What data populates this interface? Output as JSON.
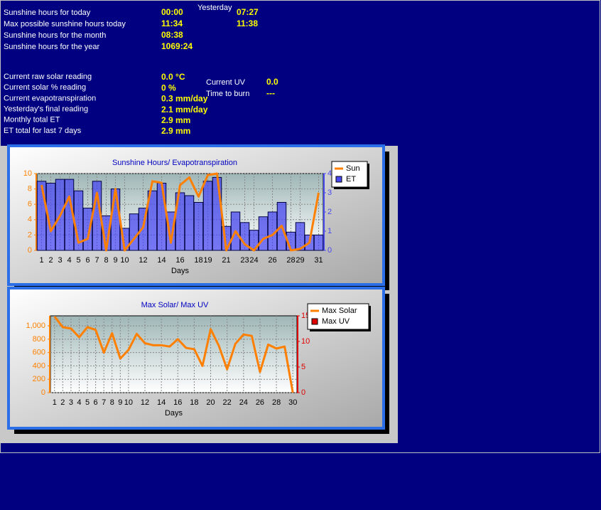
{
  "panel": {
    "yesterday_heading": "Yesterday",
    "sunshine": [
      {
        "label": "Sunshine hours for today",
        "today": "00:00",
        "yesterday": "07:27"
      },
      {
        "label": "Max possible sunshine hours today",
        "today": "11:34",
        "yesterday": "11:38"
      },
      {
        "label": "Sunshine hours for the month",
        "today": "08:38"
      },
      {
        "label": "Sunshine hours for the year",
        "today": "1069:24"
      }
    ],
    "readings": [
      {
        "label": "Current raw solar reading",
        "value": "0.0 °C"
      },
      {
        "label": "Current solar % reading",
        "value": "0 %"
      },
      {
        "label": "Current evapotranspiration",
        "value": "0.3 mm/day"
      },
      {
        "label": "Yesterday's final reading",
        "value": "2.1 mm/day"
      },
      {
        "label": "Monthly total ET",
        "value": "2.9 mm"
      },
      {
        "label": "ET total for last 7 days",
        "value": "2.9 mm"
      }
    ],
    "uv": [
      {
        "label": "Current UV",
        "value": "0.0"
      },
      {
        "label": "Time to burn",
        "value": "---"
      }
    ]
  },
  "chart_data": [
    {
      "type": "combo",
      "title": "Sunshine Hours/ Evapotranspiration",
      "x_label": "Days",
      "categories": [
        "1",
        "2",
        "3",
        "4",
        "5",
        "6",
        "7",
        "8",
        "9",
        "10",
        null,
        "12",
        null,
        "14",
        null,
        "16",
        null,
        "18",
        "19",
        null,
        "21",
        null,
        "23",
        "24",
        null,
        "26",
        null,
        "28",
        "29",
        null,
        "31"
      ],
      "series": [
        {
          "name": "Sun",
          "type": "line",
          "color": "#ff8000",
          "values": [
            8.5,
            2.5,
            4.5,
            7,
            1,
            1.5,
            7.5,
            0,
            8,
            0,
            1.5,
            3,
            9,
            8.8,
            1,
            8.5,
            9.5,
            7,
            9.8,
            10,
            0,
            2.5,
            0.8,
            0,
            1.5,
            2,
            3.2,
            0,
            0.2,
            1,
            7.5
          ]
        },
        {
          "name": "ET",
          "type": "bar",
          "axis": "y2",
          "color": "#4848f0",
          "values": [
            3.6,
            3.5,
            3.7,
            3.7,
            3.1,
            2.2,
            3.6,
            1.8,
            3.2,
            1.15,
            1.9,
            2.2,
            3.1,
            3.5,
            2.0,
            3.0,
            2.85,
            2.5,
            3.6,
            3.8,
            1.25,
            2.0,
            1.45,
            1.05,
            1.75,
            2.0,
            2.5,
            0.95,
            1.45,
            0.8,
            0.8
          ]
        }
      ],
      "ylim": [
        0,
        10
      ],
      "yticks": [
        0,
        2,
        4,
        6,
        8,
        10
      ],
      "y2lim": [
        0,
        4
      ],
      "y2ticks": [
        0,
        1,
        2,
        3,
        4
      ],
      "grid": true,
      "legend": "upper right"
    },
    {
      "type": "combo",
      "title": "Max Solar/ Max UV",
      "x_label": "Days",
      "categories": [
        "1",
        "2",
        "3",
        "4",
        "5",
        "6",
        "7",
        "8",
        "9",
        "10",
        null,
        "12",
        null,
        "14",
        null,
        "16",
        null,
        "18",
        null,
        "20",
        null,
        "22",
        null,
        "24",
        null,
        "26",
        null,
        "28",
        null,
        "30"
      ],
      "series": [
        {
          "name": "Max Solar",
          "type": "line",
          "color": "#ff8000",
          "values": [
            1140,
            980,
            960,
            830,
            980,
            940,
            600,
            890,
            510,
            640,
            880,
            740,
            710,
            710,
            690,
            800,
            670,
            650,
            400,
            950,
            700,
            350,
            730,
            870,
            850,
            310,
            720,
            660,
            690,
            0
          ]
        },
        {
          "name": "Max UV",
          "type": "bar",
          "axis": "y2",
          "color": "#e00000",
          "values": [
            0,
            0,
            0,
            0,
            0,
            0,
            0,
            0,
            0,
            0,
            0,
            0,
            0,
            0,
            0,
            0,
            0,
            0,
            0,
            0,
            0,
            0,
            0,
            0,
            0,
            0,
            0,
            0,
            0,
            0
          ]
        }
      ],
      "ylim": [
        0,
        1150
      ],
      "yticks": [
        0,
        200,
        400,
        600,
        800,
        {
          "value": 1000,
          "label": "1,000"
        }
      ],
      "y2lim": [
        0,
        15
      ],
      "y2ticks": [
        0,
        5,
        10,
        15
      ],
      "grid": true,
      "legend": "upper right"
    }
  ]
}
